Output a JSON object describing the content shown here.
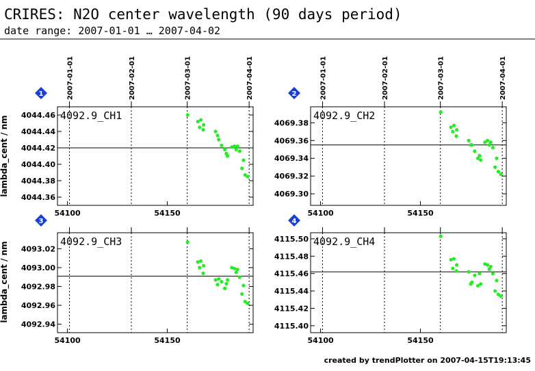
{
  "header": {
    "title": "CRIRES: N2O center wavelength (90 days period)",
    "subtitle": "date range: 2007-01-01 … 2007-04-02"
  },
  "footer": {
    "credit": "created by trendPlotter on 2007-04-15T19:13:45"
  },
  "colors": {
    "points": "#22ee22",
    "axes": "#000000",
    "badge": "#1a3fd6",
    "ref_line": "#000000"
  },
  "shared_axes": {
    "xlabel": "",
    "ylabel": "lambda_cent / nm",
    "xlim": [
      54095,
      54193
    ],
    "x_ticks": [
      54100,
      54150
    ],
    "date_markers": [
      {
        "mjd": 54101,
        "label": "2007-01-01"
      },
      {
        "mjd": 54132,
        "label": "2007-02-01"
      },
      {
        "mjd": 54160,
        "label": "2007-03-01"
      },
      {
        "mjd": 54191,
        "label": "2007-04-01"
      }
    ]
  },
  "chart_data": [
    {
      "type": "scatter",
      "panel": "1",
      "label": "4092.9_CH1",
      "ylim": [
        4044.35,
        4044.47
      ],
      "y_ticks": [
        "4044.36",
        "4044.38",
        "4044.40",
        "4044.42",
        "4044.44",
        "4044.46"
      ],
      "ref_value": 4044.42,
      "x": [
        54160.2,
        54165.3,
        54166.8,
        54166.2,
        54168.2,
        54168.0,
        54174.2,
        54175.2,
        54175.8,
        54177.2,
        54178.8,
        54179.6,
        54180.2,
        54182.3,
        54183.6,
        54184.5,
        54185.2,
        54186.3,
        54187.4,
        54188.2,
        54189.0,
        54190.3
      ],
      "y": [
        4044.46,
        4044.452,
        4044.454,
        4044.445,
        4044.448,
        4044.442,
        4044.44,
        4044.435,
        4044.43,
        4044.423,
        4044.418,
        4044.413,
        4044.41,
        4044.421,
        4044.422,
        4044.418,
        4044.422,
        4044.416,
        4044.395,
        4044.405,
        4044.387,
        4044.385
      ]
    },
    {
      "type": "scatter",
      "panel": "2",
      "label": "4092.9_CH2",
      "ylim": [
        4069.287,
        4069.398
      ],
      "y_ticks": [
        "4069.30",
        "4069.32",
        "4069.34",
        "4069.36",
        "4069.38"
      ],
      "ref_value": 4069.355,
      "x": [
        54160.2,
        54165.3,
        54166.8,
        54166.2,
        54168.2,
        54168.0,
        54174.2,
        54175.2,
        54175.8,
        54177.2,
        54178.8,
        54179.6,
        54180.2,
        54182.3,
        54183.6,
        54184.5,
        54185.2,
        54186.3,
        54187.4,
        54188.2,
        54189.0,
        54190.3
      ],
      "y": [
        4069.392,
        4069.375,
        4069.377,
        4069.37,
        4069.372,
        4069.365,
        4069.36,
        4069.355,
        4069.355,
        4069.348,
        4069.34,
        4069.343,
        4069.338,
        4069.358,
        4069.36,
        4069.355,
        4069.358,
        4069.352,
        4069.33,
        4069.34,
        4069.325,
        4069.322
      ]
    },
    {
      "type": "scatter",
      "panel": "3",
      "label": "4092.9_CH3",
      "ylim": [
        4092.931,
        4093.037
      ],
      "y_ticks": [
        "4092.94",
        "4092.96",
        "4092.98",
        "4093.00",
        "4093.02"
      ],
      "ref_value": 4092.991,
      "x": [
        54160.2,
        54165.3,
        54166.8,
        54166.2,
        54168.2,
        54168.0,
        54174.2,
        54175.2,
        54175.8,
        54177.2,
        54178.8,
        54179.6,
        54180.2,
        54182.3,
        54183.6,
        54184.5,
        54185.2,
        54186.3,
        54187.4,
        54188.2,
        54189.0,
        54190.3
      ],
      "y": [
        4093.027,
        4093.006,
        4093.007,
        4093.0,
        4093.002,
        4092.994,
        4092.987,
        4092.982,
        4092.988,
        4092.985,
        4092.978,
        4092.983,
        4092.987,
        4093.0,
        4092.999,
        4092.995,
        4092.998,
        4092.99,
        4092.972,
        4092.981,
        4092.964,
        4092.962
      ]
    },
    {
      "type": "scatter",
      "panel": "4",
      "label": "4092.9_CH4",
      "ylim": [
        4115.392,
        4115.507
      ],
      "y_ticks": [
        "4115.40",
        "4115.42",
        "4115.44",
        "4115.46",
        "4115.48",
        "4115.50"
      ],
      "ref_value": 4115.462,
      "x": [
        54160.2,
        54165.3,
        54166.8,
        54166.2,
        54168.2,
        54168.0,
        54174.2,
        54175.2,
        54175.8,
        54177.2,
        54178.8,
        54179.6,
        54180.2,
        54182.3,
        54183.6,
        54184.5,
        54185.2,
        54186.3,
        54187.4,
        54188.2,
        54189.0,
        54190.3
      ],
      "y": [
        4115.503,
        4115.476,
        4115.477,
        4115.466,
        4115.47,
        4115.463,
        4115.462,
        4115.448,
        4115.45,
        4115.458,
        4115.446,
        4115.46,
        4115.448,
        4115.471,
        4115.47,
        4115.465,
        4115.468,
        4115.46,
        4115.44,
        4115.452,
        4115.436,
        4115.434
      ]
    }
  ]
}
